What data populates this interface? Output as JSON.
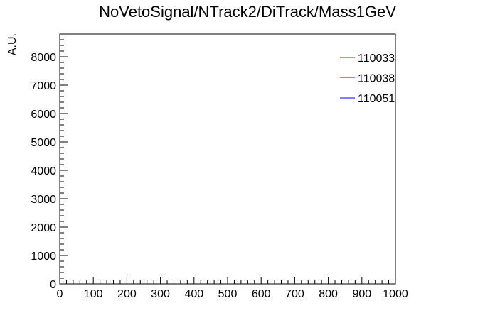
{
  "chart_data": {
    "type": "line",
    "title": "NoVetoSignal/NTrack2/DiTrack/Mass1GeV",
    "xlabel": "",
    "ylabel": "A.U.",
    "xlim": [
      0,
      1000
    ],
    "ylim": [
      0,
      8800
    ],
    "x_ticks": [
      0,
      100,
      200,
      300,
      400,
      500,
      600,
      700,
      800,
      900,
      1000
    ],
    "x_tick_labels": [
      "0",
      "100",
      "200",
      "300",
      "400",
      "500",
      "600",
      "700",
      "800",
      "900",
      "1000"
    ],
    "y_ticks": [
      0,
      1000,
      2000,
      3000,
      4000,
      5000,
      6000,
      7000,
      8000
    ],
    "y_tick_labels": [
      "0",
      "1000",
      "2000",
      "3000",
      "4000",
      "5000",
      "6000",
      "7000",
      "8000"
    ],
    "grid": false,
    "legend_position": "top-right",
    "series": [
      {
        "name": "110033",
        "color": "#ff0000",
        "x": [],
        "values": []
      },
      {
        "name": "110038",
        "color": "#00ff00",
        "x": [],
        "values": []
      },
      {
        "name": "110051",
        "color": "#0000ff",
        "x": [],
        "values": []
      }
    ]
  }
}
